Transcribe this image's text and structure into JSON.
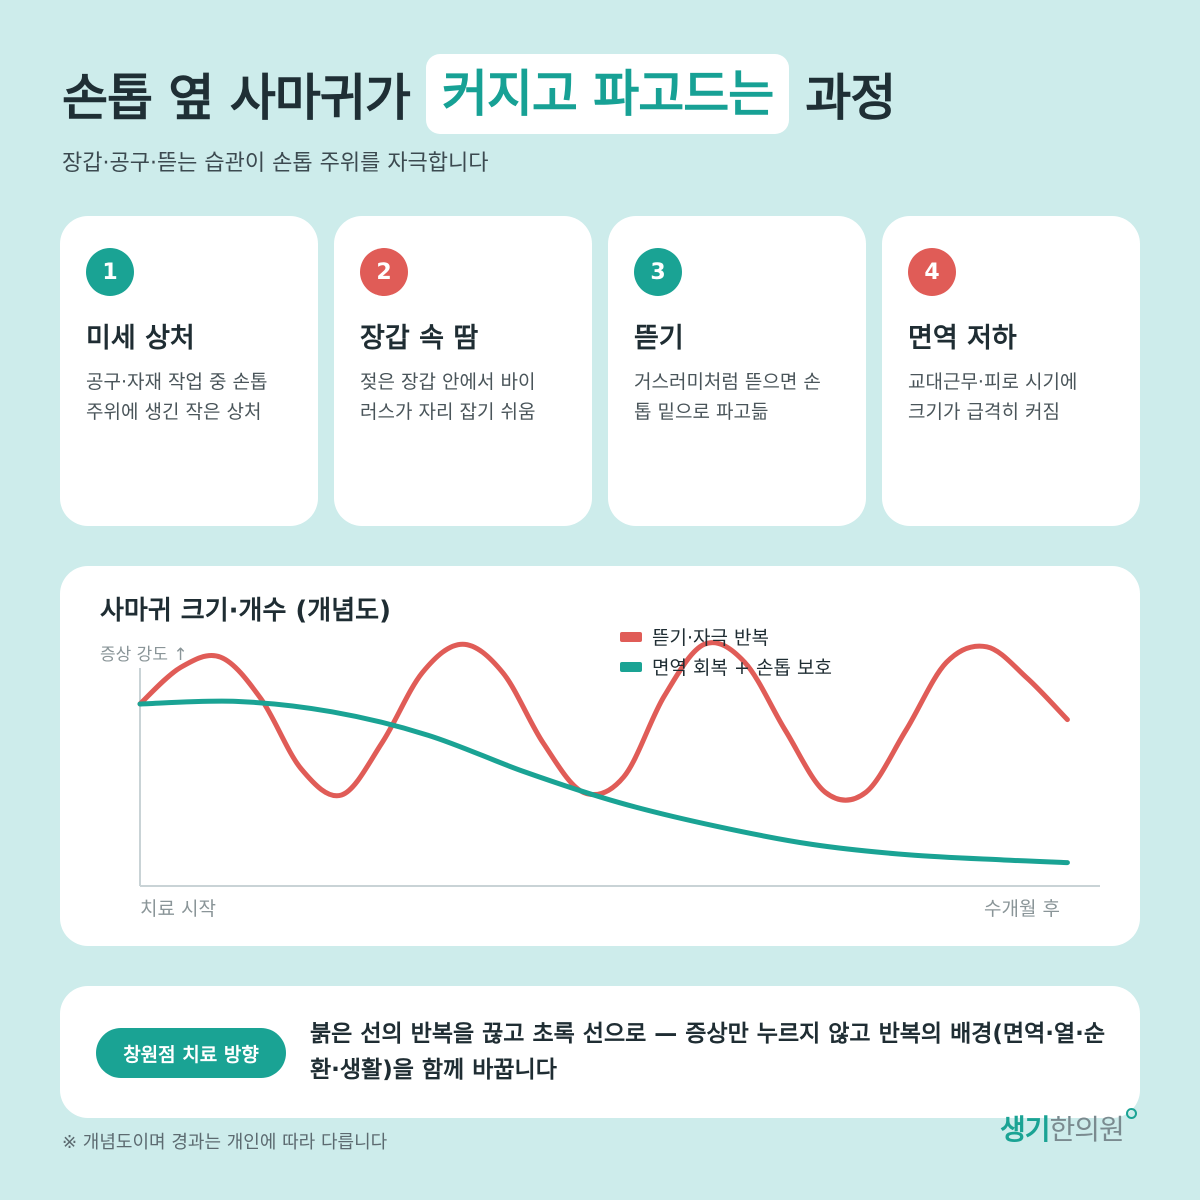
{
  "header": {
    "title_before": "손톱 옆 사마귀가",
    "title_highlight": "커지고 파고드는",
    "title_after": "과정",
    "subtitle": "장갑·공구·뜯는 습관이 손톱 주위를 자극합니다"
  },
  "cards": [
    {
      "number": "1",
      "title": "미세 상처",
      "line1": "공구·자재 작업 중 손톱",
      "line2": "주위에 생긴 작은 상처",
      "color": "#1aa394"
    },
    {
      "number": "2",
      "title": "장갑 속 땀",
      "line1": "젖은 장갑 안에서 바이",
      "line2": "러스가 자리 잡기 쉬움",
      "color": "#e05c57"
    },
    {
      "number": "3",
      "title": "뜯기",
      "line1": "거스러미처럼 뜯으면 손",
      "line2": "톱 밑으로 파고듦",
      "color": "#1aa394"
    },
    {
      "number": "4",
      "title": "면역 저하",
      "line1": "교대근무·피로 시기에",
      "line2": "크기가 급격히 커짐",
      "color": "#e05c57"
    }
  ],
  "chart_data": {
    "type": "line",
    "title": "사마귀 크기·개수 (개념도)",
    "ylabel": "증상 강도 ↑",
    "x_start_label": "치료 시작",
    "x_end_label": "수개월 후",
    "xlim": [
      0,
      1
    ],
    "ylim": [
      0,
      1
    ],
    "legend_position": "top-right",
    "series": [
      {
        "name": "뜯기·자극 반복",
        "color": "#e05c57",
        "x": [
          0,
          0.042,
          0.084,
          0.126,
          0.168,
          0.21,
          0.252,
          0.294,
          0.336,
          0.378,
          0.42,
          0.462,
          0.504,
          0.546,
          0.588,
          0.63,
          0.672,
          0.714,
          0.756,
          0.798,
          0.84,
          0.882,
          0.924,
          0.966
        ],
        "values": [
          0.7,
          0.84,
          0.88,
          0.72,
          0.45,
          0.35,
          0.55,
          0.82,
          0.93,
          0.82,
          0.55,
          0.36,
          0.42,
          0.73,
          0.93,
          0.86,
          0.6,
          0.36,
          0.36,
          0.6,
          0.86,
          0.92,
          0.8,
          0.64
        ]
      },
      {
        "name": "면역 회복 + 손톱 보호",
        "color": "#1aa394",
        "x": [
          0,
          0.1,
          0.2,
          0.3,
          0.4,
          0.5,
          0.6,
          0.7,
          0.8,
          0.9,
          0.966
        ],
        "values": [
          0.7,
          0.71,
          0.67,
          0.58,
          0.44,
          0.32,
          0.23,
          0.16,
          0.12,
          0.1,
          0.09
        ]
      }
    ]
  },
  "bottom": {
    "badge": "창원점 치료 방향",
    "message": "붉은 선의 반복을 끊고 초록 선으로 — 증상만 누르지 않고 반복의 배경(면역·열·순환·생활)을 함께 바꿉니다"
  },
  "footnote": "※ 개념도이며 경과는 개인에 따라 다릅니다",
  "logo": {
    "part1": "생기",
    "part2": "한의원"
  }
}
